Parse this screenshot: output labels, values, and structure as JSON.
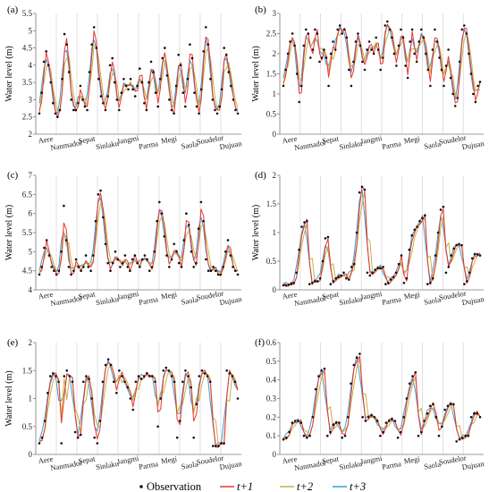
{
  "legend": {
    "observation": "Observation",
    "t1": "t+1",
    "t2": "t+2",
    "t3": "t+3"
  },
  "colors": {
    "observation": "#111111",
    "t1": "#e8352f",
    "t2": "#c9b23a",
    "t3": "#3f9ad6",
    "separator": "#d8d8d8",
    "axis": "#7a7a7a"
  },
  "chart_data": [
    {
      "type": "line",
      "panel_label": "(a)",
      "ylabel": "Water level (m)",
      "ylim": [
        2,
        5.5
      ],
      "yticks": [
        "2",
        "2.5",
        "3",
        "3.5",
        "4",
        "4.5",
        "5",
        "5.5"
      ],
      "categories": [
        "Aere",
        "Nanmadol",
        "Sepat",
        "Sinlaku",
        "Jangmi",
        "Parma",
        "Megi",
        "Saola",
        "Soudelor",
        "Dujuan"
      ],
      "observation": [
        2.6,
        3.2,
        4.1,
        4.4,
        4.0,
        3.5,
        2.9,
        2.6,
        2.5,
        2.7,
        3.6,
        4.9,
        4.6,
        3.8,
        3.0,
        2.7,
        2.7,
        2.9,
        3.4,
        3.0,
        2.8,
        2.7,
        3.8,
        4.6,
        5.1,
        4.5,
        3.6,
        3.1,
        2.9,
        2.7,
        3.1,
        4.0,
        4.2,
        3.5,
        3.0,
        2.7,
        3.2,
        3.6,
        3.4,
        3.3,
        3.6,
        3.3,
        3.1,
        3.4,
        3.9,
        3.5,
        2.9,
        2.7,
        3.5,
        4.1,
        3.8,
        3.2,
        2.8,
        3.6,
        4.2,
        4.5,
        3.7,
        3.0,
        2.7,
        2.6,
        3.4,
        4.3,
        4.0,
        3.2,
        2.8,
        3.6,
        4.6,
        4.2,
        3.2,
        2.8,
        2.6,
        3.3,
        4.4,
        5.1,
        4.6,
        3.6,
        3.0,
        2.7,
        2.6,
        2.8,
        3.3,
        4.5,
        4.3,
        3.8,
        3.4,
        3.0,
        2.7,
        2.6
      ]
    },
    {
      "type": "line",
      "panel_label": "(b)",
      "ylabel": "Water level (m)",
      "ylim": [
        0,
        3
      ],
      "yticks": [
        "0",
        "0.5",
        "1",
        "1.5",
        "2",
        "2.5",
        "3"
      ],
      "categories": [
        "Aere",
        "Nanmadol",
        "Sepat",
        "Sinlaku",
        "Jangmi",
        "Parma",
        "Megi",
        "Saola",
        "Soudelor",
        "Dujuan"
      ],
      "observation": [
        1.2,
        1.6,
        2.0,
        2.3,
        2.5,
        2.2,
        1.5,
        0.8,
        1.2,
        2.2,
        2.6,
        2.5,
        1.9,
        2.1,
        2.6,
        2.5,
        1.8,
        1.9,
        2.1,
        1.9,
        1.2,
        2.0,
        2.3,
        2.1,
        2.6,
        2.7,
        2.5,
        2.6,
        2.4,
        1.6,
        1.2,
        1.8,
        2.3,
        2.5,
        2.2,
        1.8,
        1.6,
        2.1,
        2.3,
        2.1,
        2.0,
        2.4,
        2.1,
        1.6,
        1.9,
        2.7,
        2.8,
        2.6,
        2.4,
        2.0,
        1.7,
        2.2,
        2.6,
        2.4,
        1.7,
        1.4,
        2.3,
        2.6,
        2.0,
        1.8,
        2.3,
        2.6,
        2.4,
        2.0,
        1.6,
        1.2,
        2.1,
        2.6,
        2.3,
        1.9,
        1.6,
        1.2,
        1.7,
        2.1,
        1.4,
        1.0,
        0.7,
        0.9,
        1.8,
        2.6,
        2.7,
        2.5,
        2.0,
        1.5,
        1.0,
        0.8,
        1.2,
        1.3
      ]
    },
    {
      "type": "line",
      "panel_label": "(c)",
      "ylabel": "Water level (m)",
      "ylim": [
        4,
        7
      ],
      "yticks": [
        "4",
        "4.5",
        "5",
        "5.5",
        "6",
        "6.5",
        "7"
      ],
      "categories": [
        "Aere",
        "Nanmadol",
        "Sepat",
        "Sinlaku",
        "Jangmi",
        "Parma",
        "Megi",
        "Saola",
        "Soudelor",
        "Dujuan"
      ],
      "observation": [
        4.4,
        4.6,
        5.1,
        5.3,
        4.9,
        4.6,
        4.5,
        4.4,
        4.5,
        5.0,
        6.2,
        5.3,
        4.6,
        4.4,
        4.5,
        4.8,
        4.6,
        4.5,
        4.6,
        4.9,
        4.6,
        4.5,
        4.9,
        5.8,
        6.5,
        6.6,
        5.9,
        5.2,
        4.7,
        4.5,
        4.7,
        5.0,
        4.8,
        4.6,
        4.7,
        4.9,
        4.6,
        4.5,
        4.8,
        4.9,
        4.7,
        4.6,
        4.8,
        4.9,
        4.8,
        4.5,
        4.6,
        5.0,
        5.8,
        6.3,
        6.0,
        5.4,
        4.9,
        4.6,
        4.8,
        5.2,
        5.0,
        4.7,
        4.6,
        5.3,
        6.0,
        5.7,
        5.0,
        4.6,
        4.7,
        5.6,
        6.3,
        5.8,
        4.8,
        4.5,
        4.5,
        4.6,
        4.5,
        4.4,
        4.4,
        4.6,
        5.0,
        5.3,
        4.9,
        4.6,
        4.5,
        4.4
      ]
    },
    {
      "type": "line",
      "panel_label": "(d)",
      "ylabel": "Water level (m)",
      "ylim": [
        0,
        2
      ],
      "yticks": [
        "0",
        "0.5",
        "1",
        "1.5",
        "2"
      ],
      "categories": [
        "Aere",
        "Nanmadol",
        "Sepat",
        "Sinlaku",
        "Jangmi",
        "Parma",
        "Megi",
        "Saola",
        "Soudelor",
        "Dujuan"
      ],
      "observation": [
        0.08,
        0.08,
        0.09,
        0.1,
        0.12,
        0.3,
        0.7,
        1.1,
        1.18,
        1.2,
        0.1,
        0.12,
        0.15,
        0.15,
        0.2,
        0.5,
        0.9,
        0.92,
        0.1,
        0.15,
        0.2,
        0.22,
        0.25,
        0.3,
        0.2,
        0.18,
        0.4,
        0.45,
        1.0,
        1.7,
        1.8,
        1.75,
        0.3,
        0.25,
        0.3,
        0.35,
        0.38,
        0.38,
        0.4,
        0.1,
        0.12,
        0.18,
        0.22,
        0.3,
        0.45,
        0.6,
        0.12,
        0.2,
        0.7,
        0.95,
        1.05,
        1.1,
        1.2,
        1.25,
        1.3,
        0.1,
        0.12,
        0.2,
        0.6,
        1.0,
        1.4,
        1.45,
        0.3,
        0.4,
        0.6,
        0.72,
        0.78,
        0.8,
        0.78,
        0.1,
        0.15,
        0.3,
        0.55,
        0.62,
        0.62,
        0.6
      ]
    },
    {
      "type": "line",
      "panel_label": "(e)",
      "ylabel": "Water level (m)",
      "ylim": [
        0,
        2
      ],
      "yticks": [
        "0",
        "0.5",
        "1",
        "1.5",
        "2"
      ],
      "categories": [
        "Aere",
        "Nanmadol",
        "Sepat",
        "Sinlaku",
        "Jangmi",
        "Parma",
        "Megi",
        "Saola",
        "Soudelor",
        "Dujuan"
      ],
      "observation": [
        0.2,
        0.3,
        0.6,
        1.1,
        1.4,
        1.45,
        1.4,
        1.3,
        0.2,
        1.4,
        1.5,
        1.4,
        1.3,
        0.4,
        0.3,
        0.35,
        1.3,
        1.4,
        1.35,
        1.0,
        0.3,
        0.2,
        0.6,
        1.3,
        1.6,
        1.7,
        1.6,
        1.3,
        1.1,
        1.5,
        1.4,
        1.3,
        1.2,
        1.0,
        0.8,
        1.3,
        1.4,
        1.35,
        1.4,
        1.45,
        1.4,
        1.4,
        1.3,
        0.5,
        1.0,
        1.5,
        1.55,
        1.5,
        1.4,
        1.3,
        0.3,
        0.6,
        1.3,
        1.5,
        1.4,
        1.2,
        0.3,
        0.9,
        1.4,
        1.5,
        1.45,
        1.4,
        1.3,
        0.15,
        0.15,
        0.15,
        0.2,
        0.2,
        1.5,
        1.45,
        1.4,
        1.3,
        1.0
      ]
    },
    {
      "type": "line",
      "panel_label": "(f)",
      "ylabel": "",
      "ylim": [
        0,
        0.6
      ],
      "yticks": [
        "0",
        "0.1",
        "0.2",
        "0.3",
        "0.4",
        "0.5",
        "0.6"
      ],
      "categories": [
        "Aere",
        "Nanmadol",
        "Sepat",
        "Sinlaku",
        "Jangmi",
        "Parma",
        "Megi",
        "Saola",
        "Soudelor",
        "Dujuan"
      ],
      "observation": [
        0.08,
        0.09,
        0.12,
        0.17,
        0.18,
        0.18,
        0.17,
        0.1,
        0.09,
        0.1,
        0.2,
        0.35,
        0.42,
        0.45,
        0.46,
        0.1,
        0.12,
        0.16,
        0.17,
        0.17,
        0.09,
        0.1,
        0.2,
        0.38,
        0.48,
        0.52,
        0.54,
        0.2,
        0.18,
        0.2,
        0.21,
        0.2,
        0.18,
        0.1,
        0.12,
        0.17,
        0.18,
        0.19,
        0.18,
        0.09,
        0.12,
        0.2,
        0.3,
        0.38,
        0.42,
        0.44,
        0.1,
        0.12,
        0.18,
        0.22,
        0.26,
        0.27,
        0.2,
        0.1,
        0.15,
        0.24,
        0.26,
        0.27,
        0.27,
        0.07,
        0.08,
        0.09,
        0.1,
        0.1,
        0.2,
        0.22,
        0.22,
        0.2
      ]
    }
  ]
}
